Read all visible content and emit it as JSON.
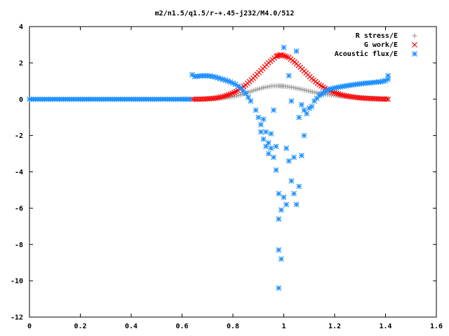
{
  "chart_data": {
    "type": "scatter",
    "title": "m2/n1.5/q1.5/r-+.45-j232/M4.0/512",
    "xlabel": "",
    "ylabel": "",
    "xlim": [
      0,
      1.6
    ],
    "ylim": [
      -12,
      4
    ],
    "x_ticks": [
      0,
      0.2,
      0.4,
      0.6,
      0.8,
      1,
      1.2,
      1.4,
      1.6
    ],
    "y_ticks": [
      -12,
      -10,
      -8,
      -6,
      -4,
      -2,
      0,
      2,
      4
    ],
    "x_tick_labels": [
      "0",
      "0.2",
      "0.4",
      "0.6",
      "0.8",
      "1",
      "1.2",
      "1.4",
      "1.6"
    ],
    "y_tick_labels": [
      "-12",
      "-10",
      "-8",
      "-6",
      "-4",
      "-2",
      "0",
      "2",
      "4"
    ],
    "grid": false,
    "legend_position": "top-right",
    "series": [
      {
        "name": "R stress/E",
        "marker": "plus",
        "color": "#a0a0a0",
        "points": [
          [
            0.65,
            0.0
          ],
          [
            0.68,
            0.01
          ],
          [
            0.71,
            0.02
          ],
          [
            0.74,
            0.04
          ],
          [
            0.77,
            0.08
          ],
          [
            0.8,
            0.14
          ],
          [
            0.83,
            0.24
          ],
          [
            0.86,
            0.38
          ],
          [
            0.89,
            0.52
          ],
          [
            0.92,
            0.64
          ],
          [
            0.95,
            0.72
          ],
          [
            0.98,
            0.74
          ],
          [
            1.0,
            0.72
          ],
          [
            1.03,
            0.66
          ],
          [
            1.06,
            0.58
          ],
          [
            1.09,
            0.48
          ],
          [
            1.12,
            0.38
          ],
          [
            1.15,
            0.3
          ],
          [
            1.18,
            0.24
          ],
          [
            1.21,
            0.19
          ],
          [
            1.24,
            0.15
          ],
          [
            1.27,
            0.12
          ],
          [
            1.3,
            0.09
          ],
          [
            1.33,
            0.07
          ],
          [
            1.36,
            0.05
          ],
          [
            1.39,
            0.03
          ],
          [
            1.41,
            0.02
          ]
        ]
      },
      {
        "name": "G work/E",
        "marker": "cross",
        "color": "#ff0000",
        "points": [
          [
            0.64,
            0.0
          ],
          [
            0.67,
            0.0
          ],
          [
            0.7,
            0.02
          ],
          [
            0.73,
            0.06
          ],
          [
            0.76,
            0.14
          ],
          [
            0.79,
            0.28
          ],
          [
            0.82,
            0.48
          ],
          [
            0.85,
            0.78
          ],
          [
            0.88,
            1.16
          ],
          [
            0.91,
            1.58
          ],
          [
            0.94,
            2.0
          ],
          [
            0.97,
            2.36
          ],
          [
            0.99,
            2.45
          ],
          [
            1.02,
            2.3
          ],
          [
            1.05,
            1.96
          ],
          [
            1.08,
            1.55
          ],
          [
            1.11,
            1.14
          ],
          [
            1.14,
            0.8
          ],
          [
            1.17,
            0.54
          ],
          [
            1.2,
            0.36
          ],
          [
            1.23,
            0.23
          ],
          [
            1.26,
            0.15
          ],
          [
            1.29,
            0.09
          ],
          [
            1.32,
            0.05
          ],
          [
            1.35,
            0.03
          ],
          [
            1.38,
            0.01
          ],
          [
            1.41,
            0.0
          ]
        ]
      },
      {
        "name": "Acoustic flux/E",
        "marker": "star",
        "color": "#1e90ff",
        "points": [
          [
            0.0,
            0.0
          ],
          [
            0.05,
            0.0
          ],
          [
            0.1,
            0.0
          ],
          [
            0.15,
            0.0
          ],
          [
            0.2,
            0.0
          ],
          [
            0.25,
            0.0
          ],
          [
            0.3,
            0.0
          ],
          [
            0.35,
            0.0
          ],
          [
            0.4,
            0.0
          ],
          [
            0.45,
            0.0
          ],
          [
            0.5,
            0.0
          ],
          [
            0.55,
            0.0
          ],
          [
            0.6,
            0.0
          ],
          [
            0.63,
            0.0
          ],
          [
            0.64,
            1.35
          ],
          [
            0.65,
            1.25
          ],
          [
            0.67,
            1.28
          ],
          [
            0.69,
            1.3
          ],
          [
            0.71,
            1.28
          ],
          [
            0.73,
            1.22
          ],
          [
            0.75,
            1.14
          ],
          [
            0.77,
            1.05
          ],
          [
            0.79,
            0.95
          ],
          [
            0.81,
            0.82
          ],
          [
            0.83,
            0.62
          ],
          [
            0.85,
            0.32
          ],
          [
            0.87,
            -0.1
          ],
          [
            0.89,
            -0.6
          ],
          [
            0.9,
            -1.0
          ],
          [
            0.91,
            -1.4
          ],
          [
            0.91,
            -1.8
          ],
          [
            0.92,
            -2.2
          ],
          [
            0.92,
            -1.1
          ],
          [
            0.93,
            -2.6
          ],
          [
            0.93,
            -1.8
          ],
          [
            0.94,
            -2.4
          ],
          [
            0.94,
            -3.0
          ],
          [
            0.95,
            -1.9
          ],
          [
            0.95,
            -2.7
          ],
          [
            0.96,
            -3.2
          ],
          [
            0.96,
            -0.6
          ],
          [
            0.97,
            -3.9
          ],
          [
            0.97,
            -2.6
          ],
          [
            0.98,
            -5.2
          ],
          [
            0.98,
            -6.6
          ],
          [
            0.98,
            -8.3
          ],
          [
            0.98,
            -10.4
          ],
          [
            0.99,
            -8.8
          ],
          [
            0.99,
            -6.1
          ],
          [
            1.0,
            -5.4
          ],
          [
            1.0,
            2.85
          ],
          [
            1.01,
            -2.7
          ],
          [
            1.01,
            -5.8
          ],
          [
            1.02,
            -3.4
          ],
          [
            1.02,
            1.3
          ],
          [
            1.03,
            -4.5
          ],
          [
            1.03,
            -0.1
          ],
          [
            1.04,
            -3.2
          ],
          [
            1.04,
            -5.2
          ],
          [
            1.05,
            -5.8
          ],
          [
            1.05,
            2.65
          ],
          [
            1.06,
            -4.8
          ],
          [
            1.06,
            -1.0
          ],
          [
            1.07,
            -3.1
          ],
          [
            1.07,
            -0.3
          ],
          [
            1.08,
            -2.0
          ],
          [
            1.08,
            -0.6
          ],
          [
            1.09,
            -0.8
          ],
          [
            1.1,
            -0.5
          ],
          [
            1.11,
            -0.4
          ],
          [
            1.12,
            -0.1
          ],
          [
            1.14,
            0.2
          ],
          [
            1.17,
            0.5
          ],
          [
            1.2,
            0.62
          ],
          [
            1.23,
            0.7
          ],
          [
            1.26,
            0.77
          ],
          [
            1.29,
            0.83
          ],
          [
            1.32,
            0.88
          ],
          [
            1.35,
            0.92
          ],
          [
            1.38,
            0.96
          ],
          [
            1.4,
            1.02
          ],
          [
            1.41,
            1.1
          ],
          [
            1.41,
            1.3
          ]
        ]
      }
    ]
  }
}
